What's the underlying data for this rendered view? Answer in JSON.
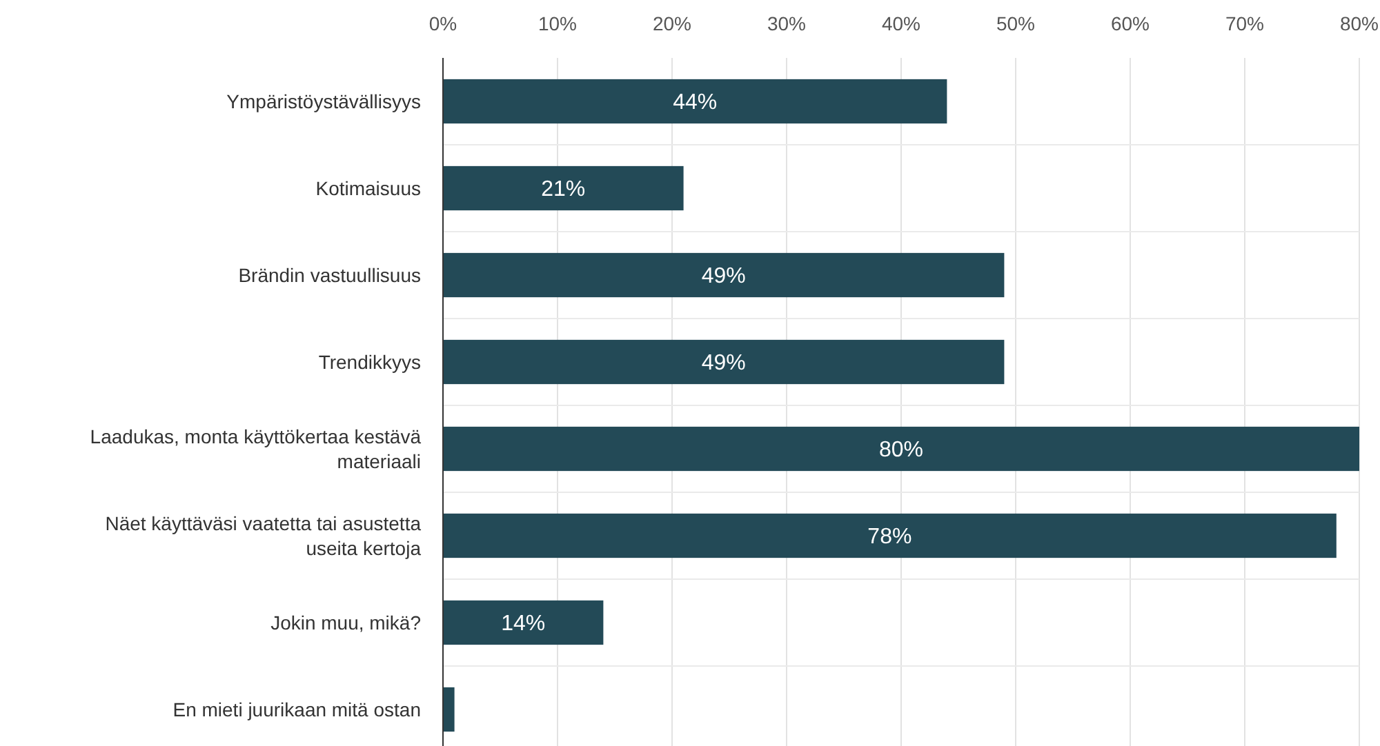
{
  "chart_data": {
    "type": "bar",
    "orientation": "horizontal",
    "categories": [
      "Ympäristöystävällisyys",
      "Kotimaisuus",
      "Brändin vastuullisuus",
      "Trendikkyys",
      "Laadukas, monta käyttökertaa kestävä materiaali",
      "Näet käyttäväsi vaatetta tai asustetta useita kertoja",
      "Jokin muu, mikä?",
      "En mieti juurikaan mitä ostan"
    ],
    "values": [
      44,
      21,
      49,
      49,
      80,
      78,
      14,
      1
    ],
    "value_labels": [
      "44%",
      "21%",
      "49%",
      "49%",
      "80%",
      "78%",
      "14%",
      null
    ],
    "color": "#234a57",
    "xlim": [
      0,
      80
    ],
    "xticks": [
      {
        "value": 0,
        "label": "0%"
      },
      {
        "value": 10,
        "label": "10%"
      },
      {
        "value": 20,
        "label": "20%"
      },
      {
        "value": 30,
        "label": "30%"
      },
      {
        "value": 40,
        "label": "40%"
      },
      {
        "value": 50,
        "label": "50%"
      },
      {
        "value": 60,
        "label": "60%"
      },
      {
        "value": 70,
        "label": "70%"
      },
      {
        "value": 80,
        "label": "80%"
      }
    ],
    "grid": true
  }
}
